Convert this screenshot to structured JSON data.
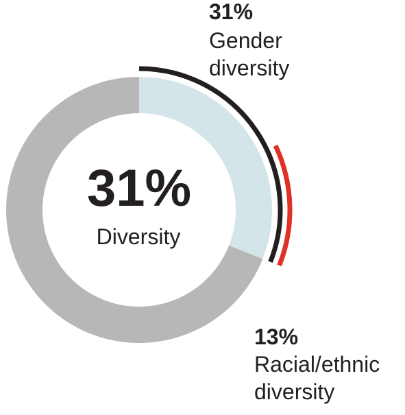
{
  "chart_data": {
    "type": "pie",
    "title": "",
    "center": {
      "value": "31%",
      "label": "Diversity"
    },
    "slices": [
      {
        "name": "Diversity",
        "value": 31,
        "color": "#d3e5e9"
      },
      {
        "name": "",
        "value": 69,
        "color": "#b7b7b7"
      }
    ],
    "callouts": [
      {
        "value": 31,
        "value_label": "31%",
        "label_lines": [
          "Gender",
          "diversity"
        ],
        "color": "#231f20"
      },
      {
        "value": 13,
        "value_label": "13%",
        "label_lines": [
          "Racial/ethnic",
          "diversity"
        ],
        "color": "#e03127"
      }
    ]
  }
}
